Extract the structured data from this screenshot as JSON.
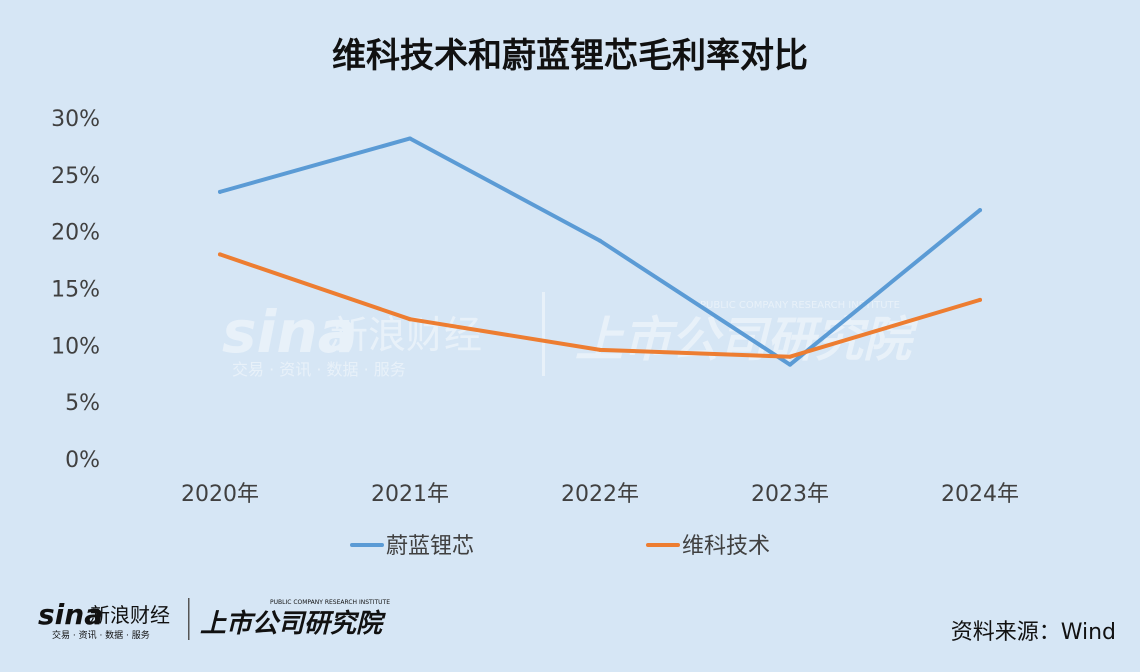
{
  "chart_data": {
    "type": "line",
    "title": "维科技术和蔚蓝锂芯毛利率对比",
    "categories": [
      "2020年",
      "2021年",
      "2022年",
      "2023年",
      "2024年"
    ],
    "series": [
      {
        "name": "蔚蓝锂芯",
        "values": [
          23.5,
          28.2,
          19.2,
          8.3,
          21.9
        ],
        "color": "#5b9bd5"
      },
      {
        "name": "维科技术",
        "values": [
          18.0,
          12.3,
          9.6,
          9.0,
          14.0
        ],
        "color": "#ed7d31"
      }
    ],
    "ylim": [
      0,
      30
    ],
    "y_ticks": [
      "0%",
      "5%",
      "10%",
      "15%",
      "20%",
      "25%",
      "30%"
    ],
    "y_tick_values": [
      0,
      5,
      10,
      15,
      20,
      25,
      30
    ],
    "grid": false,
    "legend_position": "bottom"
  },
  "watermark": {
    "brand": "sina",
    "brand_cn": "新浪财经",
    "brand_sub": "交易 · 资讯 · 数据 · 服务",
    "institute": "上市公司研究院",
    "institute_en": "PUBLIC COMPANY RESEARCH INSTITUTE"
  },
  "footer": {
    "source": "资料来源：Wind"
  }
}
